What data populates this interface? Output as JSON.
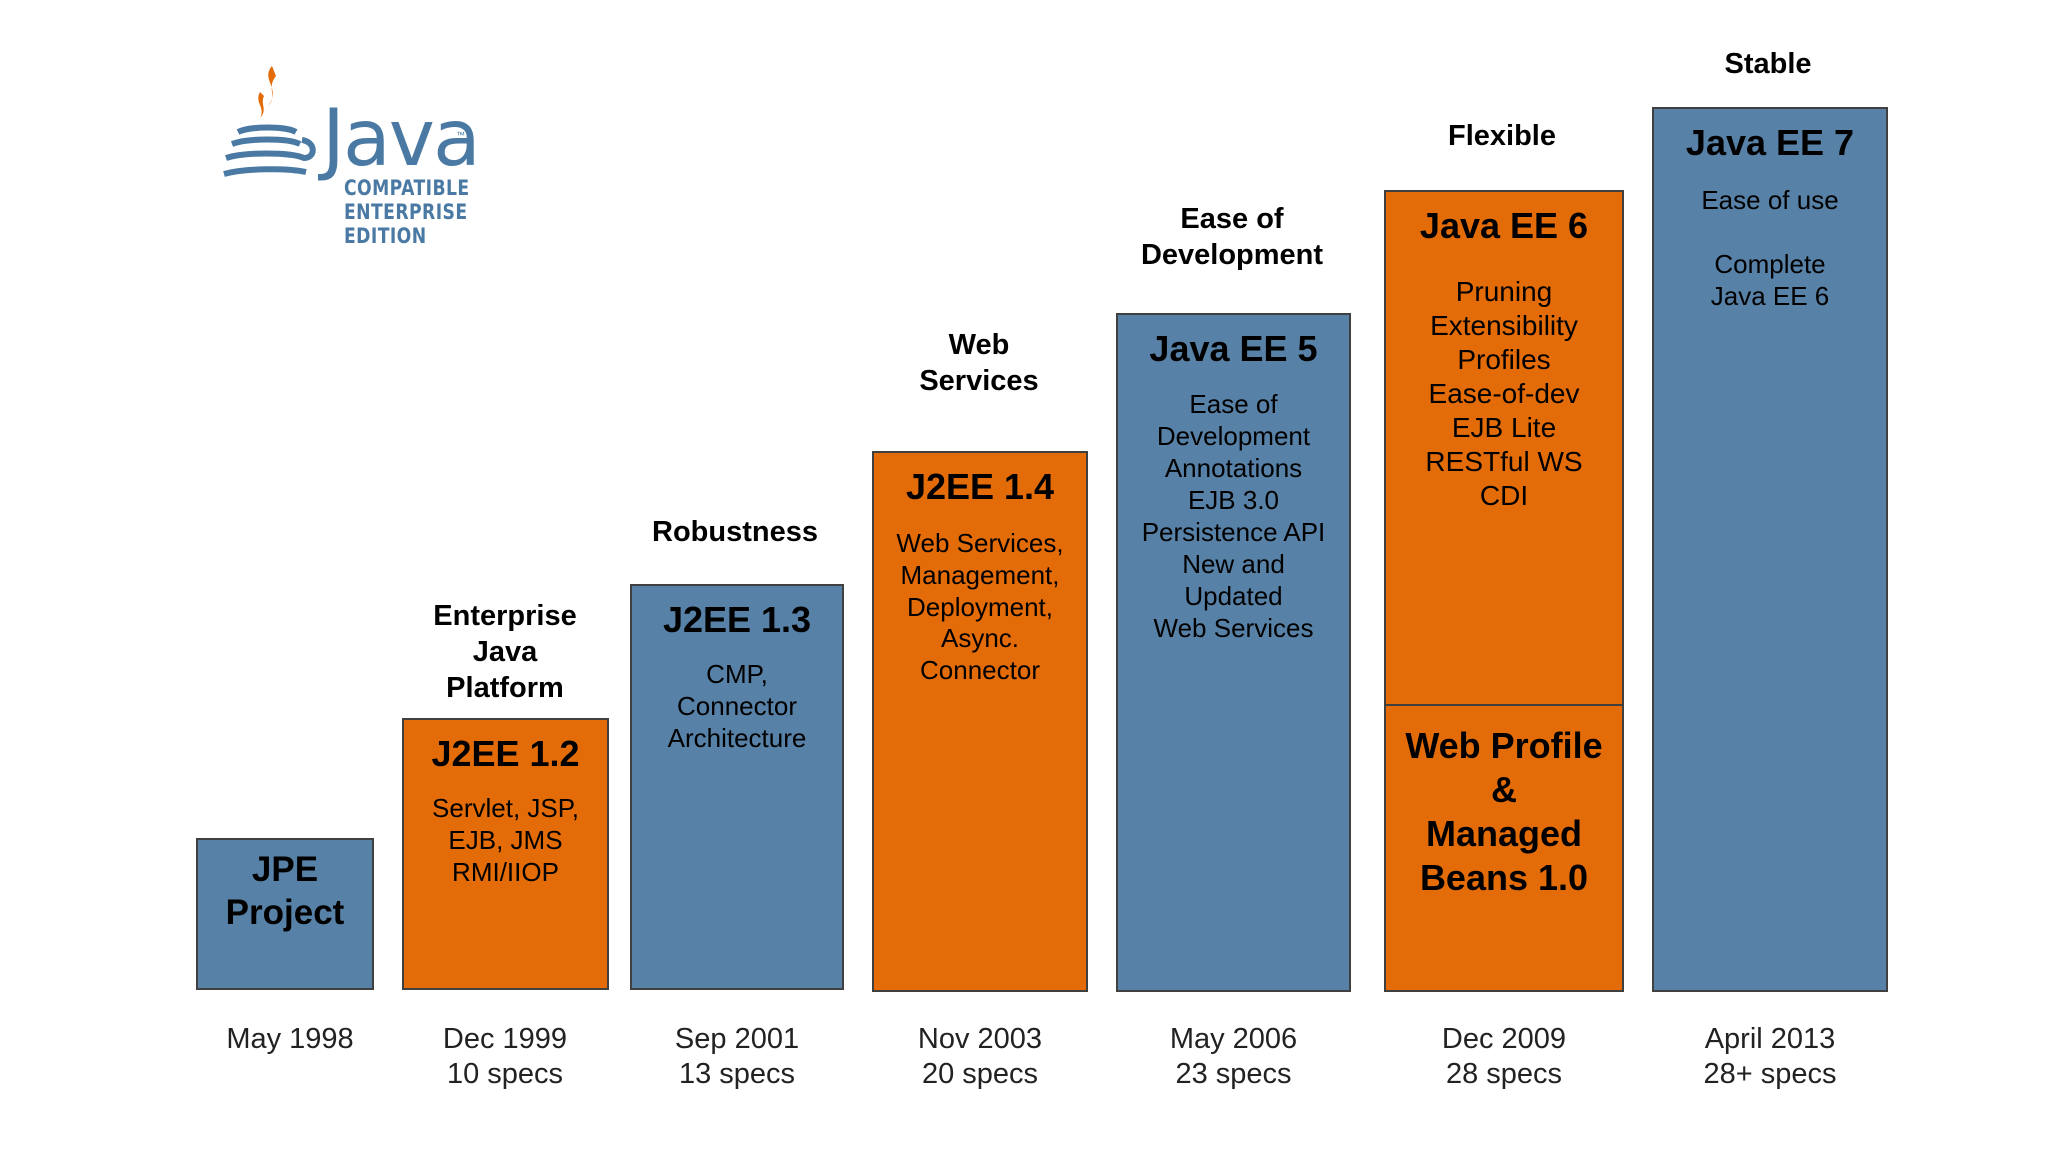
{
  "logo": {
    "wordmark": "Java",
    "trademark": "™",
    "line1": "COMPATIBLE",
    "line2": "ENTERPRISE",
    "line3": "EDITION"
  },
  "colors": {
    "blue": "#5781a6",
    "orange": "#e36c09",
    "logo": "#4a7aa3",
    "border": "#404040"
  },
  "releases": [
    {
      "heading": "",
      "title": "JPE\nProject",
      "body": "",
      "date": "May 1998",
      "specs": ""
    },
    {
      "heading": "Enterprise\nJava\nPlatform",
      "title": "J2EE 1.2",
      "body": "Servlet, JSP,\nEJB, JMS\nRMI/IIOP",
      "date": "Dec 1999",
      "specs": "10 specs"
    },
    {
      "heading": "Robustness",
      "title": "J2EE 1.3",
      "body": "CMP,\nConnector\nArchitecture",
      "date": "Sep 2001",
      "specs": "13 specs"
    },
    {
      "heading": "Web\nServices",
      "title": "J2EE 1.4",
      "body": "Web Services,\nManagement,\nDeployment,\nAsync.\nConnector",
      "date": "Nov 2003",
      "specs": "20 specs"
    },
    {
      "heading": "Ease of\nDevelopment",
      "title": "Java EE 5",
      "body": "Ease of\nDevelopment\nAnnotations\nEJB 3.0\nPersistence API\nNew and\nUpdated\nWeb Services",
      "date": "May 2006",
      "specs": "23 specs"
    },
    {
      "heading": "Flexible",
      "title": "Java EE 6",
      "body": "Pruning\nExtensibility\nProfiles\nEase-of-dev\nEJB Lite\nRESTful WS\nCDI",
      "lower_title": "Web Profile\n&\nManaged\nBeans 1.0",
      "date": "Dec 2009",
      "specs": "28 specs"
    },
    {
      "heading": "Stable",
      "title": "Java EE 7",
      "body": "Ease of use\n\nComplete\nJava EE 6",
      "date": "April 2013",
      "specs": "28+ specs"
    }
  ]
}
